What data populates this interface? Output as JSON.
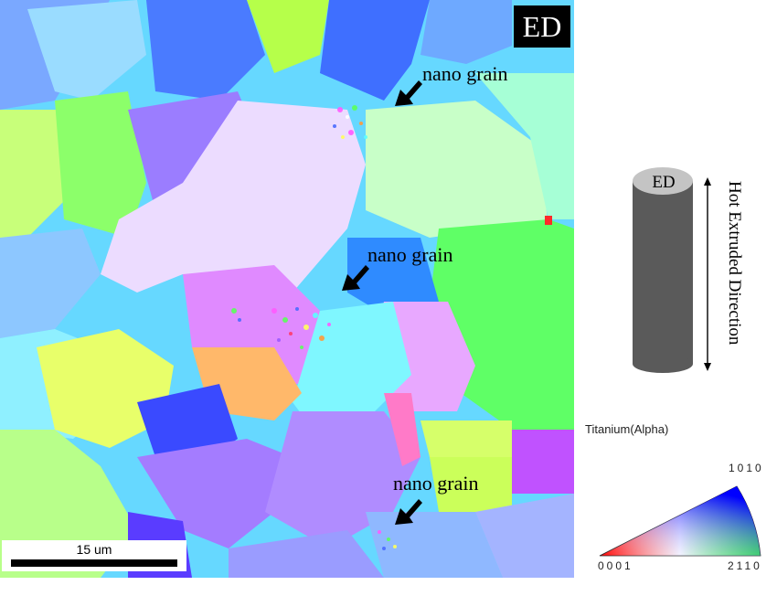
{
  "map": {
    "orientation_label": "ED",
    "annotations": [
      "nano grain",
      "nano grain",
      "nano grain"
    ],
    "scale_bar": {
      "label": "15 um"
    }
  },
  "schematic": {
    "cylinder_label": "ED",
    "direction_label": "Hot Extruded Direction"
  },
  "legend": {
    "phase": "Titanium(Alpha)",
    "corners": [
      "0001",
      "2110",
      "1010"
    ]
  },
  "colors": {
    "red_0001": "#ff0000",
    "green_2110": "#00ff00",
    "blue_1010": "#0000ff",
    "cylinder_body": "#5a5a5a",
    "cylinder_top": "#c4c4c4"
  }
}
